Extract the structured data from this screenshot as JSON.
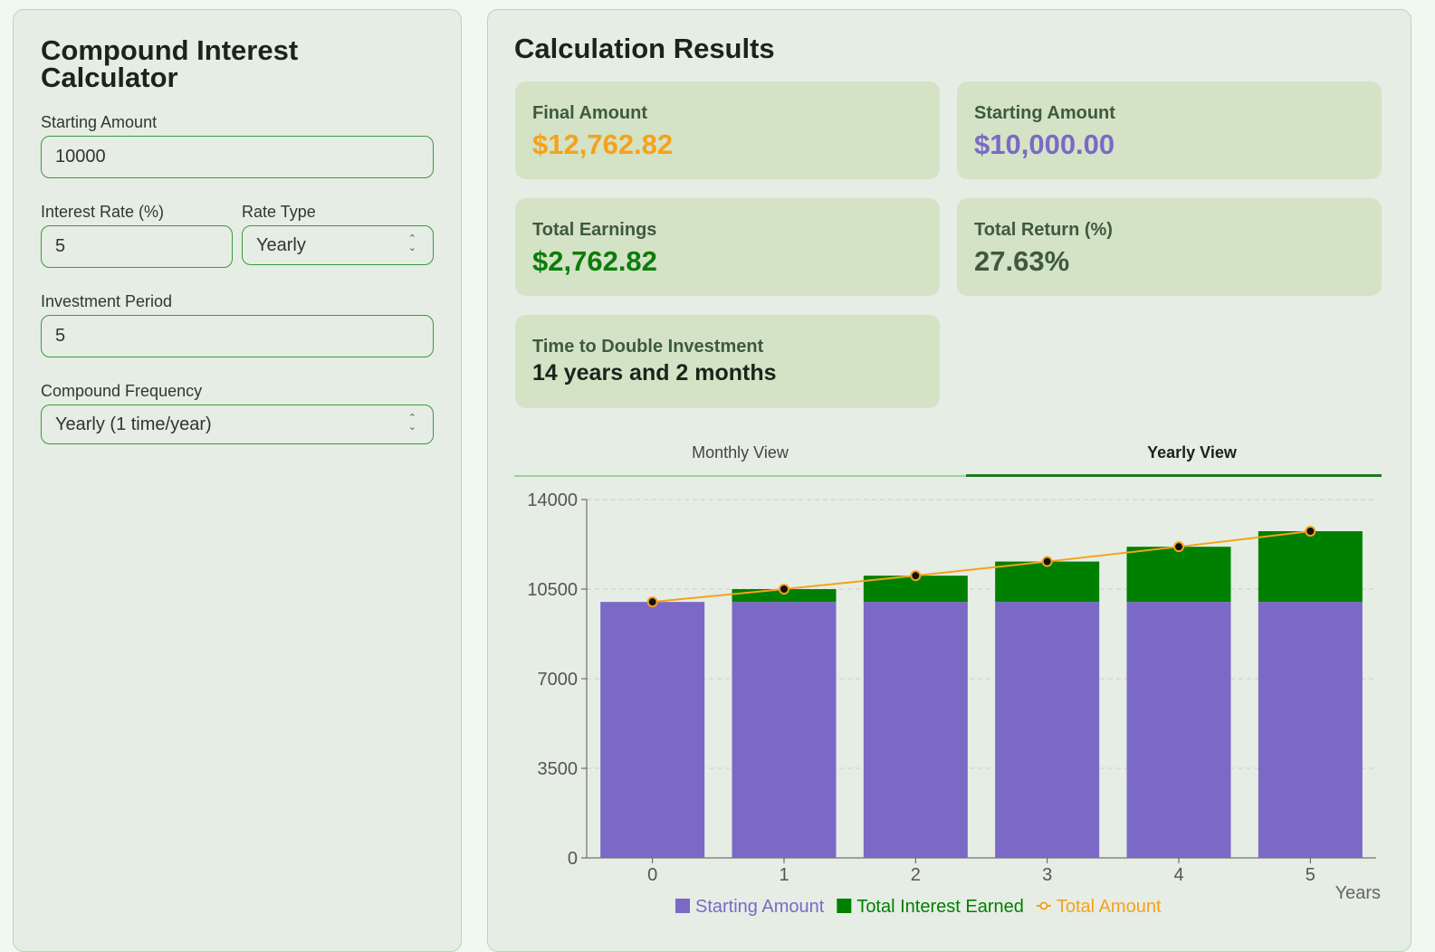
{
  "form": {
    "title": "Compound Interest Calculator",
    "starting_amount": {
      "label": "Starting Amount",
      "value": "10000"
    },
    "interest_rate": {
      "label": "Interest Rate (%)",
      "value": "5"
    },
    "rate_type": {
      "label": "Rate Type",
      "value": "Yearly"
    },
    "investment_period": {
      "label": "Investment Period",
      "value": "5"
    },
    "compound_frequency": {
      "label": "Compound Frequency",
      "value": "Yearly (1 time/year)"
    }
  },
  "results": {
    "title": "Calculation Results",
    "cards": [
      {
        "label": "Final Amount",
        "value": "$12,762.82"
      },
      {
        "label": "Starting Amount",
        "value": "$10,000.00"
      },
      {
        "label": "Total Earnings",
        "value": "$2,762.82"
      },
      {
        "label": "Total Return (%)",
        "value": "27.63%"
      },
      {
        "label": "Time to Double Investment",
        "value": "14 years and 2 months"
      }
    ]
  },
  "tabs": [
    "Monthly View",
    "Yearly View"
  ],
  "chart_data": {
    "type": "bar",
    "stacked": true,
    "x_label": "Years",
    "categories": [
      "0",
      "1",
      "2",
      "3",
      "4",
      "5"
    ],
    "series": [
      {
        "name": "Starting Amount",
        "color": "#7b69c6",
        "values": [
          10000,
          10000,
          10000,
          10000,
          10000,
          10000
        ]
      },
      {
        "name": "Total Interest Earned",
        "color": "#008000",
        "values": [
          0,
          500,
          1025,
          1576.25,
          2155.06,
          2762.82
        ]
      },
      {
        "name": "Total Amount",
        "type": "line",
        "color": "#f5a21b",
        "values": [
          10000,
          10500,
          11025,
          11576.25,
          12155.06,
          12762.82
        ]
      }
    ],
    "ylim": [
      0,
      14000
    ],
    "yticks": [
      0,
      3500,
      7000,
      10500,
      14000
    ],
    "grid": true,
    "legend": "bottom"
  }
}
